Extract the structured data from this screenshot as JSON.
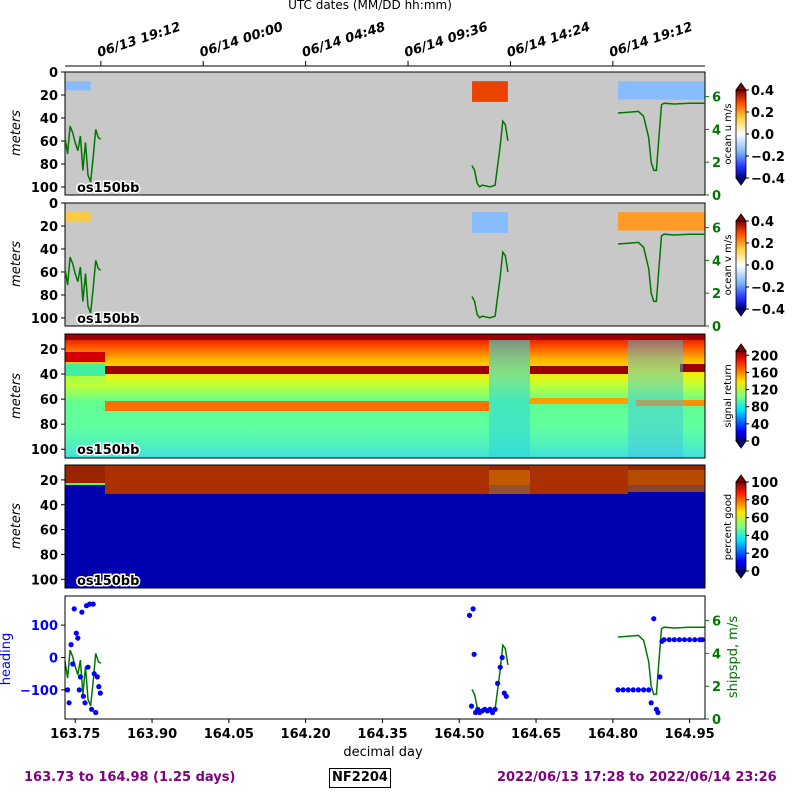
{
  "top_axis": {
    "title": "UTC dates (MM/DD hh:mm)",
    "ticks": [
      {
        "x": 163.8,
        "label": "06/13 19:12"
      },
      {
        "x": 164.0,
        "label": "06/14 00:00"
      },
      {
        "x": 164.2,
        "label": "06/14 04:48"
      },
      {
        "x": 164.4,
        "label": "06/14 09:36"
      },
      {
        "x": 164.6,
        "label": "06/14 14:24"
      },
      {
        "x": 164.8,
        "label": "06/14 19:12"
      }
    ]
  },
  "footer": {
    "range_left": "163.73 to 164.98 (1.25 days)",
    "cruise": "NF2204",
    "range_right": "2022/06/13 17:28 to 2022/06/14 23:26"
  },
  "colors": {
    "nodata_gray": "#c8c8c8",
    "speed_line": "#007700",
    "heading_dots": "#0000ff",
    "footer_text": "#800080"
  },
  "chart_data": [
    {
      "type": "heatmap",
      "panel": "ocean-u",
      "instrument_label": "os150bb",
      "ylabel": "meters",
      "y_ticks": [
        0,
        20,
        40,
        60,
        80,
        100
      ],
      "ylim": [
        107,
        0
      ],
      "colorbar": {
        "label": "ocean u m/s",
        "colormap": "bwr-jet",
        "ticks": [
          0.4,
          0.2,
          0.0,
          -0.2,
          -0.4
        ],
        "tick_labels": [
          "0.4",
          "0.2",
          "0.0",
          "−0.2",
          "−0.4"
        ],
        "range": [
          -0.4,
          0.4
        ]
      },
      "overlay_axis": {
        "label": "",
        "ticks": [
          0,
          2,
          4,
          6
        ],
        "range": [
          0,
          7.5
        ]
      },
      "data_blocks": [
        {
          "x": [
            163.73,
            163.78
          ],
          "depth": [
            8,
            16
          ],
          "mean_value": -0.15
        },
        {
          "x": [
            164.525,
            164.595
          ],
          "depth": [
            8,
            26
          ],
          "mean_value": 0.3
        },
        {
          "x": [
            164.81,
            164.98
          ],
          "depth": [
            8,
            24
          ],
          "mean_value": -0.15
        }
      ]
    },
    {
      "type": "heatmap",
      "panel": "ocean-v",
      "instrument_label": "os150bb",
      "ylabel": "meters",
      "y_ticks": [
        0,
        20,
        40,
        60,
        80,
        100
      ],
      "ylim": [
        107,
        0
      ],
      "colorbar": {
        "label": "ocean v m/s",
        "colormap": "bwr-jet",
        "ticks": [
          0.4,
          0.2,
          0.0,
          -0.2,
          -0.4
        ],
        "tick_labels": [
          "0.4",
          "0.2",
          "0.0",
          "−0.2",
          "−0.4"
        ],
        "range": [
          -0.4,
          0.4
        ]
      },
      "overlay_axis": {
        "label": "",
        "ticks": [
          0,
          2,
          4,
          6
        ],
        "range": [
          0,
          7.5
        ]
      },
      "data_blocks": [
        {
          "x": [
            163.73,
            163.78
          ],
          "depth": [
            8,
            16
          ],
          "mean_value": 0.15
        },
        {
          "x": [
            164.525,
            164.595
          ],
          "depth": [
            8,
            26
          ],
          "mean_value": -0.15
        },
        {
          "x": [
            164.81,
            164.98
          ],
          "depth": [
            8,
            24
          ],
          "mean_value": 0.2
        }
      ]
    },
    {
      "type": "heatmap",
      "panel": "signal-return",
      "instrument_label": "os150bb",
      "ylabel": "meters",
      "y_ticks": [
        20,
        40,
        60,
        80,
        100
      ],
      "ylim": [
        107,
        8
      ],
      "colorbar": {
        "label": "signal return",
        "colormap": "jet",
        "ticks": [
          200,
          160,
          120,
          80,
          40,
          0
        ],
        "tick_labels": [
          "200",
          "160",
          "120",
          "80",
          "40",
          "0"
        ],
        "range": [
          0,
          210
        ]
      }
    },
    {
      "type": "heatmap",
      "panel": "percent-good",
      "instrument_label": "os150bb",
      "ylabel": "meters",
      "y_ticks": [
        20,
        40,
        60,
        80,
        100
      ],
      "ylim": [
        107,
        8
      ],
      "colorbar": {
        "label": "percent good",
        "colormap": "jet",
        "ticks": [
          100,
          80,
          60,
          40,
          20,
          0
        ],
        "tick_labels": [
          "100",
          "80",
          "60",
          "40",
          "20",
          "0"
        ],
        "range": [
          0,
          100
        ]
      }
    },
    {
      "type": "scatter",
      "panel": "heading-shipspd",
      "ylabel": "heading",
      "y_ticks": [
        100,
        0,
        -100
      ],
      "y_tick_labels": [
        "100",
        "0",
        "−100"
      ],
      "ylim": [
        -190,
        190
      ],
      "right_ylabel": "shipspd, m/s",
      "right_ticks": [
        0,
        2,
        4,
        6
      ],
      "right_ylim": [
        0,
        7.5
      ],
      "xlabel": "decimal day",
      "x_ticks": [
        163.75,
        163.9,
        164.05,
        164.2,
        164.35,
        164.5,
        164.65,
        164.8,
        164.95
      ],
      "x_tick_labels": [
        "163.75",
        "163.90",
        "164.05",
        "164.20",
        "164.35",
        "164.50",
        "164.65",
        "164.80",
        "164.95"
      ],
      "xlim": [
        163.73,
        164.98
      ],
      "heading_points": [
        [
          163.735,
          -100
        ],
        [
          163.738,
          -140
        ],
        [
          163.742,
          40
        ],
        [
          163.745,
          -20
        ],
        [
          163.748,
          150
        ],
        [
          163.752,
          75
        ],
        [
          163.755,
          60
        ],
        [
          163.758,
          -100
        ],
        [
          163.76,
          -60
        ],
        [
          163.763,
          140
        ],
        [
          163.766,
          -120
        ],
        [
          163.769,
          -140
        ],
        [
          163.772,
          160
        ],
        [
          163.775,
          -30
        ],
        [
          163.778,
          165
        ],
        [
          163.782,
          -160
        ],
        [
          163.785,
          165
        ],
        [
          163.787,
          -50
        ],
        [
          163.79,
          -170
        ],
        [
          163.793,
          -60
        ],
        [
          163.796,
          -90
        ],
        [
          163.799,
          -110
        ],
        [
          164.52,
          130
        ],
        [
          164.524,
          -150
        ],
        [
          164.527,
          150
        ],
        [
          164.529,
          10
        ],
        [
          164.532,
          -170
        ],
        [
          164.536,
          -160
        ],
        [
          164.54,
          -170
        ],
        [
          164.545,
          -165
        ],
        [
          164.55,
          -160
        ],
        [
          164.555,
          -165
        ],
        [
          164.56,
          -160
        ],
        [
          164.565,
          -170
        ],
        [
          164.57,
          -160
        ],
        [
          164.575,
          -80
        ],
        [
          164.58,
          -30
        ],
        [
          164.584,
          0
        ],
        [
          164.588,
          -110
        ],
        [
          164.592,
          -120
        ],
        [
          164.81,
          -100
        ],
        [
          164.82,
          -100
        ],
        [
          164.83,
          -100
        ],
        [
          164.84,
          -100
        ],
        [
          164.85,
          -100
        ],
        [
          164.86,
          -100
        ],
        [
          164.87,
          -100
        ],
        [
          164.875,
          -140
        ],
        [
          164.88,
          120
        ],
        [
          164.885,
          -160
        ],
        [
          164.888,
          -170
        ],
        [
          164.892,
          -60
        ],
        [
          164.896,
          50
        ],
        [
          164.9,
          55
        ],
        [
          164.91,
          55
        ],
        [
          164.92,
          55
        ],
        [
          164.93,
          55
        ],
        [
          164.94,
          55
        ],
        [
          164.95,
          55
        ],
        [
          164.96,
          55
        ],
        [
          164.97,
          55
        ],
        [
          164.975,
          55
        ]
      ],
      "speed_segments": [
        [
          [
            163.73,
            3.5
          ],
          [
            163.735,
            2.5
          ],
          [
            163.74,
            4.2
          ],
          [
            163.745,
            3.8
          ],
          [
            163.75,
            3.2
          ],
          [
            163.755,
            2.7
          ],
          [
            163.76,
            3.6
          ],
          [
            163.765,
            1.5
          ],
          [
            163.77,
            3.2
          ],
          [
            163.775,
            1.2
          ],
          [
            163.78,
            0.8
          ],
          [
            163.785,
            2.3
          ],
          [
            163.79,
            4.0
          ],
          [
            163.795,
            3.5
          ],
          [
            163.8,
            3.4
          ]
        ],
        [
          [
            164.525,
            1.8
          ],
          [
            164.53,
            1.5
          ],
          [
            164.535,
            0.7
          ],
          [
            164.54,
            0.5
          ],
          [
            164.545,
            0.6
          ],
          [
            164.56,
            0.5
          ],
          [
            164.57,
            0.6
          ],
          [
            164.58,
            3.0
          ],
          [
            164.585,
            4.5
          ],
          [
            164.59,
            4.3
          ],
          [
            164.595,
            3.3
          ]
        ],
        [
          [
            164.81,
            5.0
          ],
          [
            164.83,
            5.05
          ],
          [
            164.85,
            5.1
          ],
          [
            164.86,
            4.8
          ],
          [
            164.87,
            3.5
          ],
          [
            164.875,
            2.0
          ],
          [
            164.88,
            1.5
          ],
          [
            164.885,
            1.5
          ],
          [
            164.89,
            3.5
          ],
          [
            164.895,
            5.5
          ],
          [
            164.9,
            5.6
          ],
          [
            164.92,
            5.55
          ],
          [
            164.95,
            5.6
          ],
          [
            164.98,
            5.6
          ]
        ]
      ]
    }
  ]
}
